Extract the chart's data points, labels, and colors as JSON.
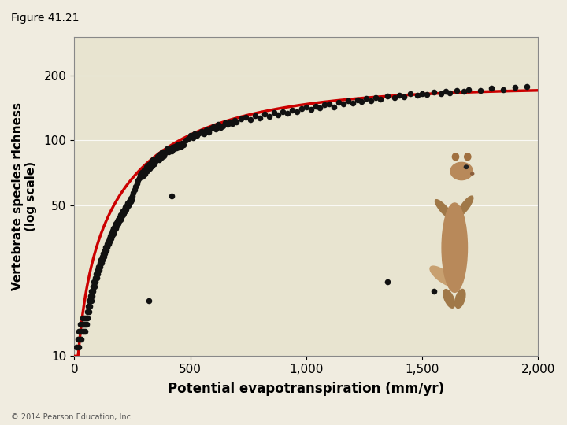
{
  "title": "Figure 41.21",
  "xlabel": "Potential evapotranspiration (mm/yr)",
  "ylabel": "Vertebrate species richness\n(log scale)",
  "fig_bg_color": "#f0ece0",
  "bg_color": "#e8e4d0",
  "dot_color": "#111111",
  "curve_color": "#cc0000",
  "xlim": [
    0,
    2000
  ],
  "yticks": [
    10,
    50,
    100,
    200
  ],
  "ytick_labels": [
    "10",
    "50",
    "100",
    "200"
  ],
  "xticks": [
    0,
    500,
    1000,
    1500,
    2000
  ],
  "xtick_labels": [
    "0",
    "500",
    "1,000",
    "1,500",
    "2,000"
  ],
  "scatter_x": [
    10,
    15,
    18,
    20,
    22,
    25,
    28,
    30,
    32,
    35,
    38,
    40,
    42,
    45,
    48,
    50,
    52,
    55,
    58,
    60,
    62,
    65,
    68,
    70,
    72,
    75,
    78,
    80,
    82,
    85,
    88,
    90,
    92,
    95,
    98,
    100,
    102,
    105,
    108,
    110,
    112,
    115,
    118,
    120,
    122,
    125,
    128,
    130,
    132,
    135,
    138,
    140,
    142,
    145,
    148,
    150,
    152,
    155,
    158,
    160,
    162,
    165,
    168,
    170,
    172,
    175,
    178,
    180,
    182,
    185,
    188,
    190,
    192,
    195,
    198,
    200,
    202,
    205,
    208,
    210,
    212,
    215,
    218,
    220,
    222,
    225,
    228,
    230,
    232,
    235,
    238,
    240,
    242,
    245,
    248,
    250,
    255,
    260,
    265,
    270,
    275,
    280,
    285,
    290,
    295,
    300,
    305,
    310,
    315,
    320,
    325,
    330,
    335,
    340,
    345,
    350,
    355,
    360,
    365,
    370,
    375,
    380,
    385,
    390,
    395,
    400,
    405,
    410,
    415,
    420,
    425,
    430,
    435,
    440,
    445,
    450,
    455,
    460,
    465,
    470,
    480,
    490,
    500,
    510,
    520,
    530,
    540,
    550,
    560,
    570,
    580,
    590,
    600,
    610,
    620,
    630,
    640,
    650,
    660,
    670,
    680,
    690,
    700,
    720,
    740,
    760,
    780,
    800,
    820,
    840,
    860,
    880,
    900,
    920,
    940,
    960,
    980,
    1000,
    1020,
    1040,
    1060,
    1080,
    1100,
    1120,
    1140,
    1160,
    1180,
    1200,
    1220,
    1240,
    1260,
    1280,
    1300,
    1320,
    1350,
    1380,
    1400,
    1420,
    1450,
    1480,
    1500,
    1520,
    1550,
    1580,
    1600,
    1620,
    1650,
    1680,
    1700,
    1750,
    1800,
    1850,
    1900,
    1950,
    320,
    420,
    1350,
    1550
  ],
  "scatter_y": [
    11,
    12,
    11,
    13,
    12,
    14,
    13,
    12,
    14,
    15,
    13,
    14,
    15,
    14,
    13,
    15,
    14,
    16,
    15,
    17,
    16,
    18,
    17,
    19,
    18,
    20,
    19,
    21,
    20,
    22,
    21,
    23,
    22,
    24,
    23,
    25,
    24,
    26,
    25,
    27,
    26,
    28,
    27,
    29,
    28,
    30,
    29,
    31,
    30,
    32,
    31,
    33,
    32,
    34,
    33,
    35,
    34,
    36,
    35,
    37,
    36,
    38,
    37,
    39,
    38,
    40,
    39,
    41,
    40,
    42,
    41,
    43,
    42,
    44,
    43,
    45,
    44,
    46,
    45,
    47,
    46,
    48,
    47,
    49,
    48,
    50,
    49,
    51,
    50,
    52,
    51,
    53,
    52,
    54,
    53,
    55,
    57,
    59,
    61,
    63,
    65,
    67,
    69,
    71,
    68,
    73,
    70,
    75,
    72,
    77,
    74,
    79,
    76,
    81,
    78,
    80,
    82,
    84,
    81,
    86,
    83,
    88,
    85,
    87,
    89,
    91,
    88,
    90,
    92,
    89,
    93,
    91,
    94,
    92,
    95,
    93,
    96,
    94,
    97,
    95,
    100,
    102,
    105,
    103,
    107,
    105,
    108,
    110,
    107,
    112,
    109,
    114,
    116,
    113,
    118,
    115,
    117,
    120,
    118,
    122,
    119,
    124,
    122,
    126,
    128,
    125,
    130,
    127,
    132,
    129,
    134,
    131,
    136,
    133,
    138,
    135,
    140,
    142,
    139,
    144,
    141,
    146,
    148,
    143,
    150,
    147,
    152,
    149,
    154,
    151,
    156,
    153,
    158,
    155,
    160,
    157,
    162,
    159,
    164,
    161,
    165,
    163,
    167,
    165,
    168,
    166,
    170,
    168,
    172,
    170,
    174,
    172,
    176,
    178,
    18,
    55,
    22,
    20
  ],
  "curve_A": 175.0,
  "curve_B": 170.0,
  "curve_C": 0.0018,
  "copyright": "© 2014 Pearson Education, Inc."
}
